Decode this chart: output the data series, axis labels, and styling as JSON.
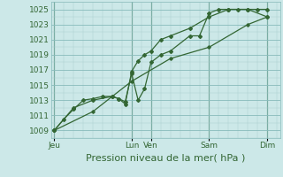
{
  "bg_color": "#cce8e8",
  "grid_major_color": "#88bbbb",
  "grid_minor_color": "#aacccc",
  "line_color": "#336633",
  "marker_color": "#336633",
  "ylabel_ticks": [
    1009,
    1011,
    1013,
    1015,
    1017,
    1019,
    1021,
    1023,
    1025
  ],
  "ylim": [
    1008.0,
    1026.0
  ],
  "xlabel": "Pression niveau de la mer( hPa )",
  "xlabel_fontsize": 8,
  "tick_fontsize": 6.5,
  "x_tick_labels": [
    "Jeu",
    "Lun",
    "Ven",
    "Sam",
    "Dim"
  ],
  "x_tick_positions": [
    0,
    48,
    60,
    96,
    132
  ],
  "xlim": [
    -2,
    140
  ],
  "vline_positions": [
    0,
    48,
    60,
    96,
    132
  ],
  "series1_x": [
    0,
    6,
    12,
    18,
    24,
    30,
    36,
    40,
    44,
    48,
    52,
    56,
    60,
    66,
    72,
    84,
    90,
    96,
    102,
    108,
    114,
    120,
    126,
    132
  ],
  "series1_y": [
    1009,
    1010.5,
    1011.8,
    1013.0,
    1013.2,
    1013.5,
    1013.5,
    1013.2,
    1012.8,
    1016.5,
    1013.0,
    1014.5,
    1018.0,
    1019.0,
    1019.5,
    1021.5,
    1021.5,
    1024.5,
    1025.0,
    1025.0,
    1025.0,
    1025.0,
    1025.0,
    1025.0
  ],
  "series2_x": [
    0,
    12,
    24,
    36,
    40,
    44,
    48,
    52,
    56,
    60,
    66,
    72,
    84,
    96,
    108,
    120,
    132
  ],
  "series2_y": [
    1009,
    1012.0,
    1013.0,
    1013.5,
    1013.2,
    1012.5,
    1016.8,
    1018.2,
    1019.0,
    1019.5,
    1021.0,
    1021.5,
    1022.5,
    1024.0,
    1025.0,
    1025.0,
    1024.0
  ],
  "series3_x": [
    0,
    24,
    48,
    72,
    96,
    120,
    132
  ],
  "series3_y": [
    1009,
    1011.5,
    1015.5,
    1018.5,
    1020.0,
    1023.0,
    1024.0
  ]
}
